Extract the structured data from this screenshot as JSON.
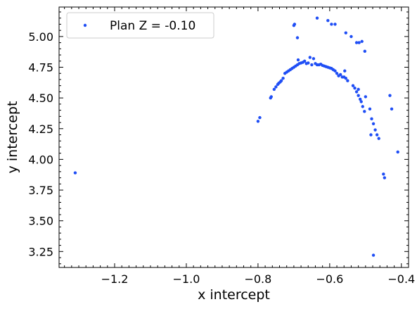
{
  "chart_data": {
    "type": "scatter",
    "xlabel": "x intercept",
    "ylabel": "y intercept",
    "xlim": [
      -1.355,
      -0.38
    ],
    "ylim": [
      3.12,
      5.24
    ],
    "xticks": [
      -1.2,
      -1.0,
      -0.8,
      -0.6,
      -0.4
    ],
    "xtick_labels": [
      "−1.2",
      "−1.0",
      "−0.8",
      "−0.6",
      "−0.4"
    ],
    "yticks": [
      3.25,
      3.5,
      3.75,
      4.0,
      4.25,
      4.5,
      4.75,
      5.0
    ],
    "ytick_labels": [
      "3.25",
      "3.50",
      "3.75",
      "4.00",
      "4.25",
      "4.50",
      "4.75",
      "5.00"
    ],
    "legend": {
      "placement": "top-left"
    },
    "grid": false,
    "series": [
      {
        "name": "Plan Z = -0.10",
        "color": "#1f4ef5",
        "points": [
          [
            -1.31,
            3.89
          ],
          [
            -0.8,
            4.31
          ],
          [
            -0.795,
            4.34
          ],
          [
            -0.765,
            4.5
          ],
          [
            -0.763,
            4.51
          ],
          [
            -0.755,
            4.57
          ],
          [
            -0.75,
            4.59
          ],
          [
            -0.745,
            4.61
          ],
          [
            -0.742,
            4.62
          ],
          [
            -0.738,
            4.63
          ],
          [
            -0.735,
            4.64
          ],
          [
            -0.73,
            4.66
          ],
          [
            -0.725,
            4.7
          ],
          [
            -0.72,
            4.71
          ],
          [
            -0.715,
            4.72
          ],
          [
            -0.71,
            4.73
          ],
          [
            -0.705,
            4.74
          ],
          [
            -0.7,
            4.75
          ],
          [
            -0.695,
            4.76
          ],
          [
            -0.69,
            4.77
          ],
          [
            -0.685,
            4.78
          ],
          [
            -0.68,
            4.785
          ],
          [
            -0.675,
            4.79
          ],
          [
            -0.688,
            4.81
          ],
          [
            -0.67,
            4.8
          ],
          [
            -0.665,
            4.78
          ],
          [
            -0.66,
            4.785
          ],
          [
            -0.655,
            4.83
          ],
          [
            -0.65,
            4.77
          ],
          [
            -0.645,
            4.82
          ],
          [
            -0.64,
            4.78
          ],
          [
            -0.635,
            4.77
          ],
          [
            -0.63,
            4.77
          ],
          [
            -0.625,
            4.775
          ],
          [
            -0.62,
            4.765
          ],
          [
            -0.615,
            4.76
          ],
          [
            -0.61,
            4.755
          ],
          [
            -0.605,
            4.75
          ],
          [
            -0.6,
            4.745
          ],
          [
            -0.595,
            4.74
          ],
          [
            -0.59,
            4.73
          ],
          [
            -0.585,
            4.72
          ],
          [
            -0.58,
            4.7
          ],
          [
            -0.575,
            4.68
          ],
          [
            -0.57,
            4.69
          ],
          [
            -0.565,
            4.67
          ],
          [
            -0.56,
            4.67
          ],
          [
            -0.555,
            4.66
          ],
          [
            -0.55,
            4.64
          ],
          [
            -0.558,
            4.72
          ],
          [
            -0.535,
            4.6
          ],
          [
            -0.53,
            4.58
          ],
          [
            -0.525,
            4.55
          ],
          [
            -0.52,
            4.52
          ],
          [
            -0.515,
            4.49
          ],
          [
            -0.512,
            4.47
          ],
          [
            -0.508,
            4.43
          ],
          [
            -0.503,
            4.39
          ],
          [
            -0.5,
            4.51
          ],
          [
            -0.52,
            4.57
          ],
          [
            -0.488,
            4.41
          ],
          [
            -0.483,
            4.33
          ],
          [
            -0.478,
            4.29
          ],
          [
            -0.473,
            4.24
          ],
          [
            -0.468,
            4.2
          ],
          [
            -0.463,
            4.17
          ],
          [
            -0.485,
            4.2
          ],
          [
            -0.45,
            3.88
          ],
          [
            -0.447,
            3.85
          ],
          [
            -0.432,
            4.52
          ],
          [
            -0.427,
            4.41
          ],
          [
            -0.41,
            4.06
          ],
          [
            -0.478,
            3.22
          ],
          [
            -0.7,
            5.09
          ],
          [
            -0.698,
            5.1
          ],
          [
            -0.69,
            4.99
          ],
          [
            -0.635,
            5.15
          ],
          [
            -0.605,
            5.13
          ],
          [
            -0.595,
            5.1
          ],
          [
            -0.585,
            5.1
          ],
          [
            -0.555,
            5.03
          ],
          [
            -0.54,
            5.0
          ],
          [
            -0.525,
            4.95
          ],
          [
            -0.518,
            4.95
          ],
          [
            -0.51,
            4.96
          ],
          [
            -0.502,
            4.88
          ]
        ]
      }
    ]
  }
}
